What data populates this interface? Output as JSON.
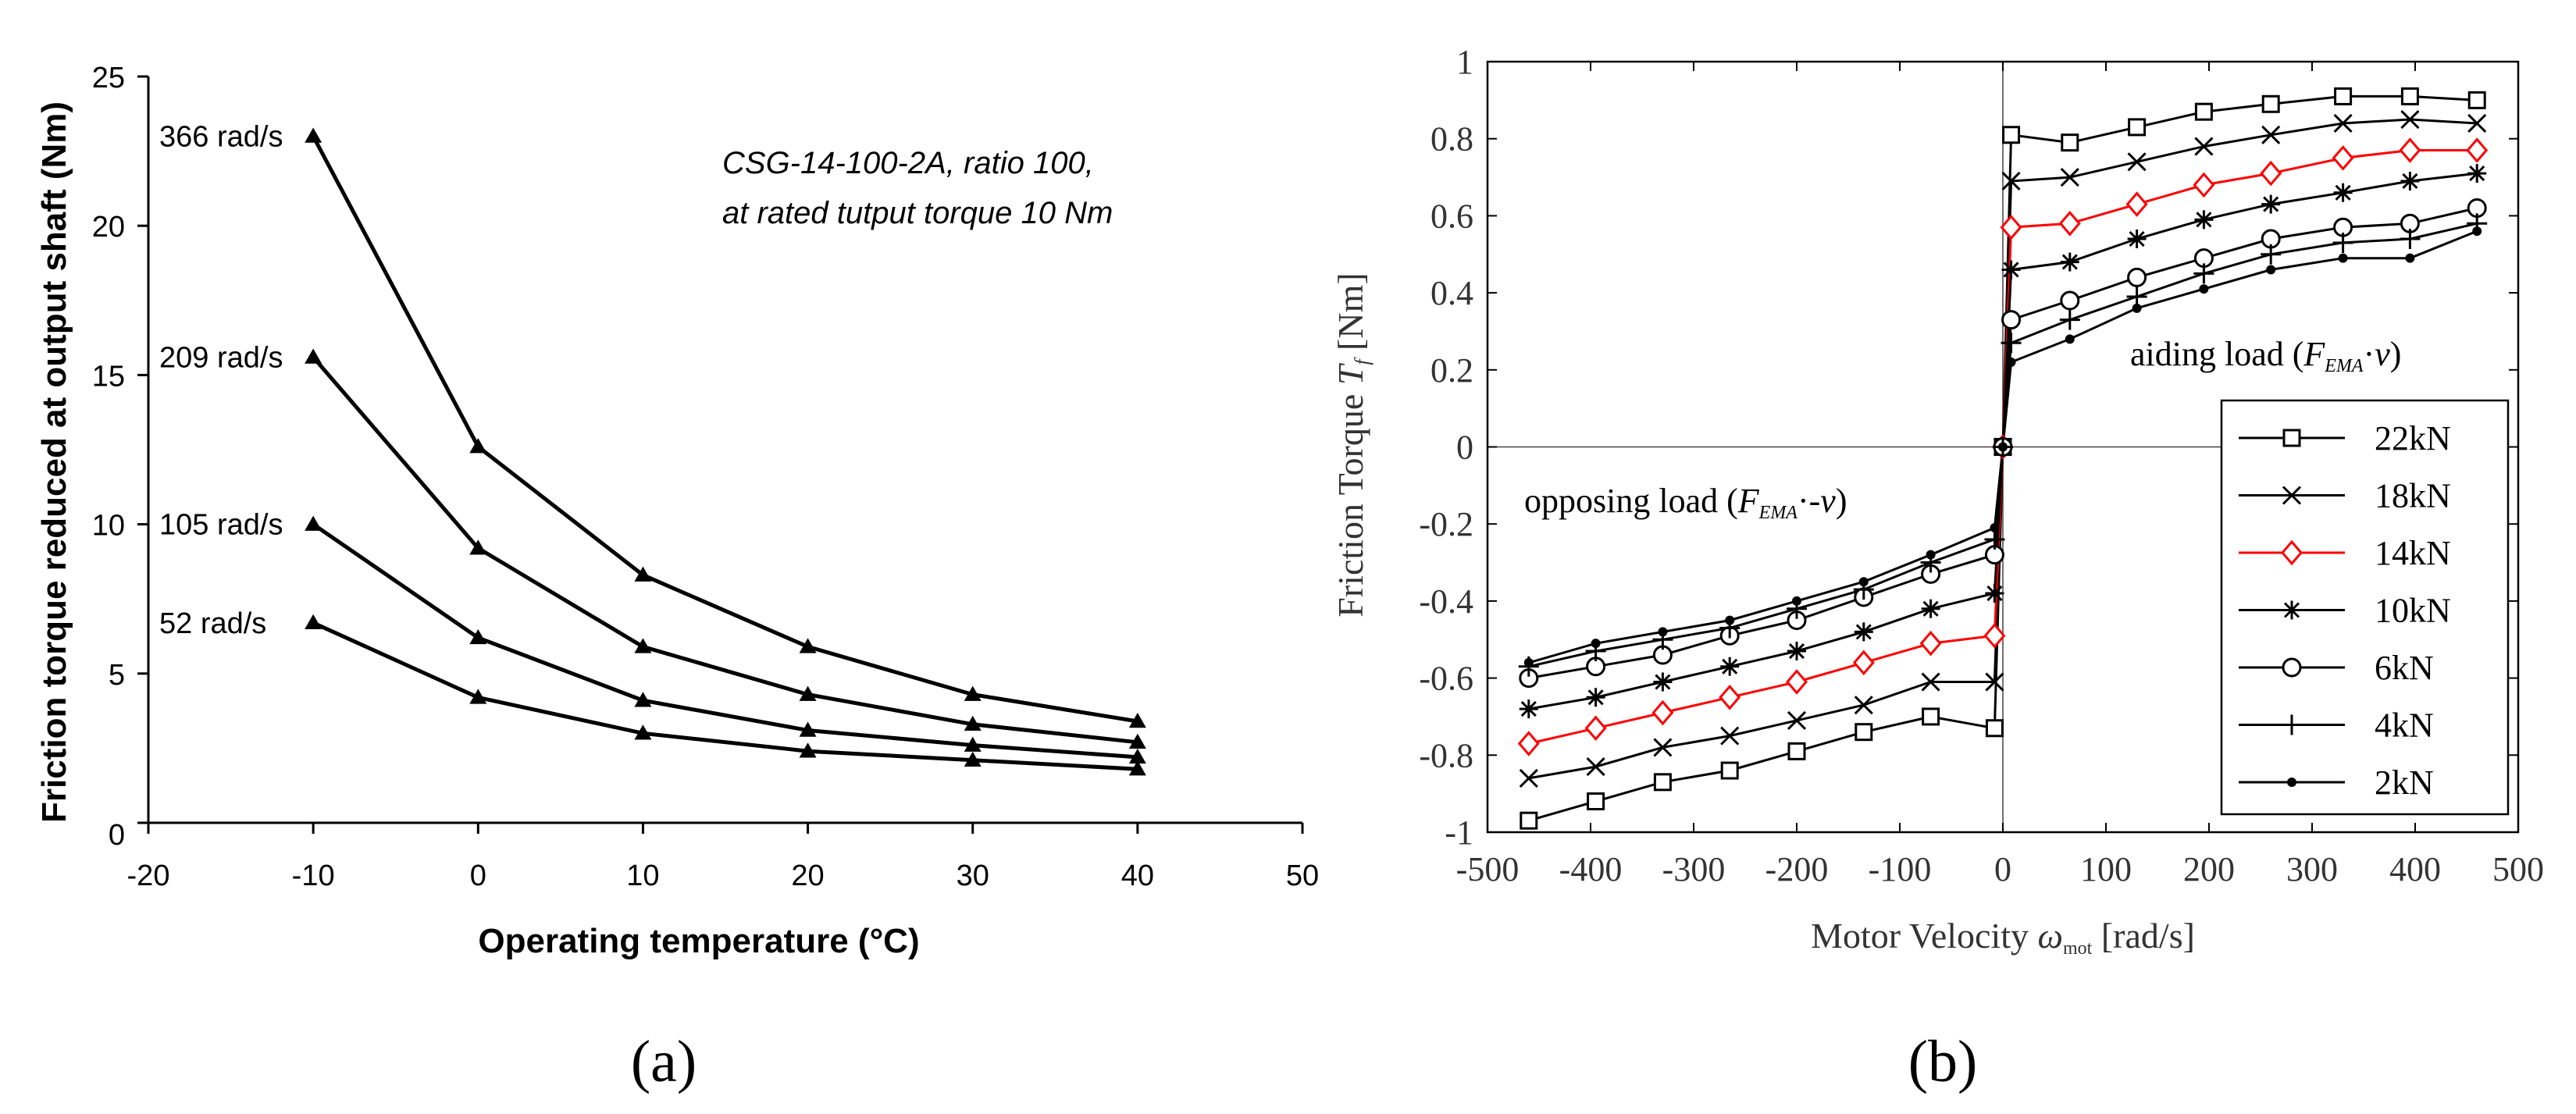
{
  "chart_data": [
    {
      "panel": "(a)",
      "type": "line",
      "title": "",
      "annotation": [
        "CSG-14-100-2A, ratio 100,",
        "at rated tutput torque 10 Nm"
      ],
      "xlabel": "Operating temperature (°C)",
      "ylabel": "Friction torque reduced at output shaft (Nm)",
      "xlim": [
        -20,
        50
      ],
      "ylim": [
        0,
        25
      ],
      "xticks": [
        "-20",
        "-10",
        "0",
        "10",
        "20",
        "30",
        "40",
        "50"
      ],
      "yticks": [
        "0",
        "5",
        "10",
        "15",
        "20",
        "25"
      ],
      "grid": false,
      "marker": "filled-triangle",
      "color": "#000000",
      "x": [
        -10,
        0,
        10,
        20,
        30,
        40
      ],
      "series": [
        {
          "name": "366 rad/s",
          "values": [
            23.0,
            12.6,
            8.3,
            5.9,
            4.3,
            3.4
          ]
        },
        {
          "name": "209 rad/s",
          "values": [
            15.6,
            9.2,
            5.9,
            4.3,
            3.3,
            2.7
          ]
        },
        {
          "name": "105 rad/s",
          "values": [
            10.0,
            6.2,
            4.1,
            3.1,
            2.6,
            2.2
          ]
        },
        {
          "name": "52 rad/s",
          "values": [
            6.7,
            4.2,
            3.0,
            2.4,
            2.1,
            1.8
          ]
        }
      ]
    },
    {
      "panel": "(b)",
      "type": "line",
      "title": "",
      "xlabel": "Motor Velocity ω_mot [rad/s]",
      "ylabel": "Friction Torque T_f [Nm]",
      "xlim": [
        -500,
        500
      ],
      "ylim": [
        -1,
        1
      ],
      "xticks": [
        "-500",
        "-400",
        "-300",
        "-200",
        "-100",
        "0",
        "100",
        "200",
        "300",
        "400",
        "500"
      ],
      "yticks": [
        "-1",
        "-0.8",
        "-0.6",
        "-0.4",
        "-0.2",
        "0",
        "0.2",
        "0.4",
        "0.6",
        "0.8",
        "1"
      ],
      "grid": false,
      "legend_position": "bottom-right",
      "annotations": {
        "aiding": "aiding load (F_EMA·v)",
        "opposing": "opposing load (F_EMA·-v)"
      },
      "x": [
        -460,
        -395,
        -330,
        -265,
        -200,
        -135,
        -70,
        -8,
        0,
        8,
        65,
        130,
        195,
        260,
        330,
        395,
        460
      ],
      "series": [
        {
          "name": "22kN",
          "color": "#000000",
          "marker": "square",
          "values": [
            -0.97,
            -0.92,
            -0.87,
            -0.84,
            -0.79,
            -0.74,
            -0.7,
            -0.73,
            0,
            0.81,
            0.79,
            0.83,
            0.87,
            0.89,
            0.91,
            0.91,
            0.9
          ]
        },
        {
          "name": "18kN",
          "color": "#000000",
          "marker": "cross",
          "values": [
            -0.86,
            -0.83,
            -0.78,
            -0.75,
            -0.71,
            -0.67,
            -0.61,
            -0.61,
            0,
            0.69,
            0.7,
            0.74,
            0.78,
            0.81,
            0.84,
            0.85,
            0.84
          ]
        },
        {
          "name": "14kN",
          "color": "#ff0000",
          "marker": "diamond",
          "values": [
            -0.77,
            -0.73,
            -0.69,
            -0.65,
            -0.61,
            -0.56,
            -0.51,
            -0.49,
            0,
            0.57,
            0.58,
            0.63,
            0.68,
            0.71,
            0.75,
            0.77,
            0.77
          ]
        },
        {
          "name": "10kN",
          "color": "#000000",
          "marker": "asterisk",
          "values": [
            -0.68,
            -0.65,
            -0.61,
            -0.57,
            -0.53,
            -0.48,
            -0.42,
            -0.38,
            0,
            0.46,
            0.48,
            0.54,
            0.59,
            0.63,
            0.66,
            0.69,
            0.71
          ]
        },
        {
          "name": "6kN",
          "color": "#000000",
          "marker": "circle",
          "values": [
            -0.6,
            -0.57,
            -0.54,
            -0.49,
            -0.45,
            -0.39,
            -0.33,
            -0.28,
            0,
            0.33,
            0.38,
            0.44,
            0.49,
            0.54,
            0.57,
            0.58,
            0.62
          ]
        },
        {
          "name": "4kN",
          "color": "#000000",
          "marker": "plus",
          "values": [
            -0.57,
            -0.53,
            -0.5,
            -0.47,
            -0.42,
            -0.37,
            -0.3,
            -0.24,
            0,
            0.27,
            0.33,
            0.39,
            0.45,
            0.5,
            0.53,
            0.54,
            0.58
          ]
        },
        {
          "name": "2kN",
          "color": "#000000",
          "marker": "dot",
          "values": [
            -0.56,
            -0.51,
            -0.48,
            -0.45,
            -0.4,
            -0.35,
            -0.28,
            -0.21,
            0,
            0.22,
            0.28,
            0.36,
            0.41,
            0.46,
            0.49,
            0.49,
            0.56
          ]
        }
      ]
    }
  ]
}
